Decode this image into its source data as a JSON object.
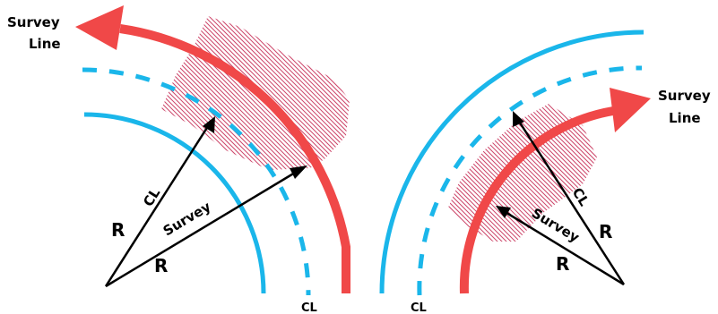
{
  "labels": {
    "survey_line_left_1": "Survey",
    "survey_line_left_2": "Line",
    "survey_line_right_1": "Survey",
    "survey_line_right_2": "Line",
    "cl_bottom_left": "CL",
    "cl_bottom_right": "CL",
    "left_arrow_cl": "CL",
    "left_arrow_survey": "Survey",
    "left_r_upper": "R",
    "left_r_lower": "R",
    "right_arrow_cl": "CL",
    "right_arrow_survey": "Survey",
    "right_r_upper": "R",
    "right_r_lower": "R"
  },
  "colors": {
    "curve_blue": "#1ab6ea",
    "survey_red": "#f04848",
    "hatch": "#c8325a",
    "text": "#000000"
  }
}
